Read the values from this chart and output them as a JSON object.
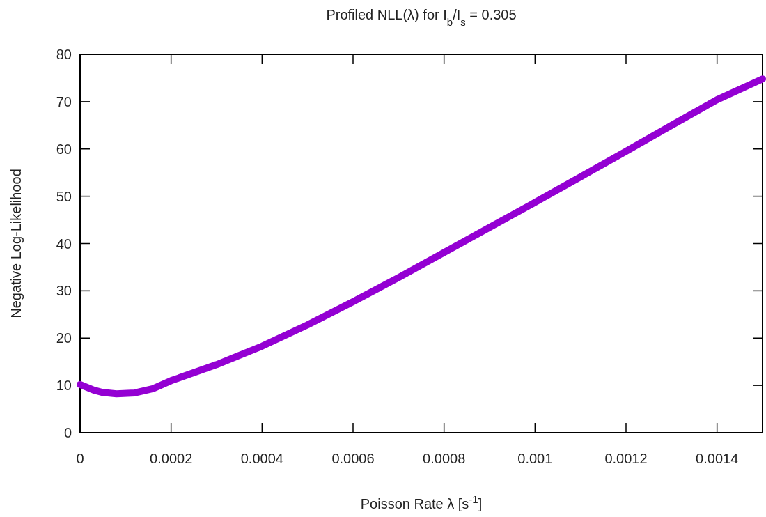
{
  "chart_data": {
    "type": "line",
    "title": "Profiled NLL(λ) for I$_{b}$/I$_{s}$ = 0.305",
    "xlabel": "Poisson Rate λ [s$^{-1}$]",
    "ylabel": "Negative Log-Likelihood",
    "xlim": [
      0,
      0.0015
    ],
    "ylim": [
      0,
      80
    ],
    "xticks": [
      0,
      0.0002,
      0.0004,
      0.0006,
      0.0008,
      0.001,
      0.0012,
      0.0014
    ],
    "yticks": [
      0,
      10,
      20,
      30,
      40,
      50,
      60,
      70,
      80
    ],
    "grid": false,
    "x": [
      0,
      3e-05,
      5e-05,
      8e-05,
      0.00012,
      0.00016,
      0.0002,
      0.0003,
      0.0004,
      0.0005,
      0.0006,
      0.0007,
      0.0008,
      0.0009,
      0.001,
      0.0011,
      0.0012,
      0.0013,
      0.0014,
      0.0015
    ],
    "series": [
      {
        "color": "#9400d3",
        "values": [
          10.2,
          9.0,
          8.5,
          8.2,
          8.4,
          9.3,
          11.0,
          14.4,
          18.3,
          22.8,
          27.7,
          32.8,
          38.1,
          43.4,
          48.7,
          54.1,
          59.5,
          65.0,
          70.4,
          74.8
        ]
      }
    ]
  }
}
